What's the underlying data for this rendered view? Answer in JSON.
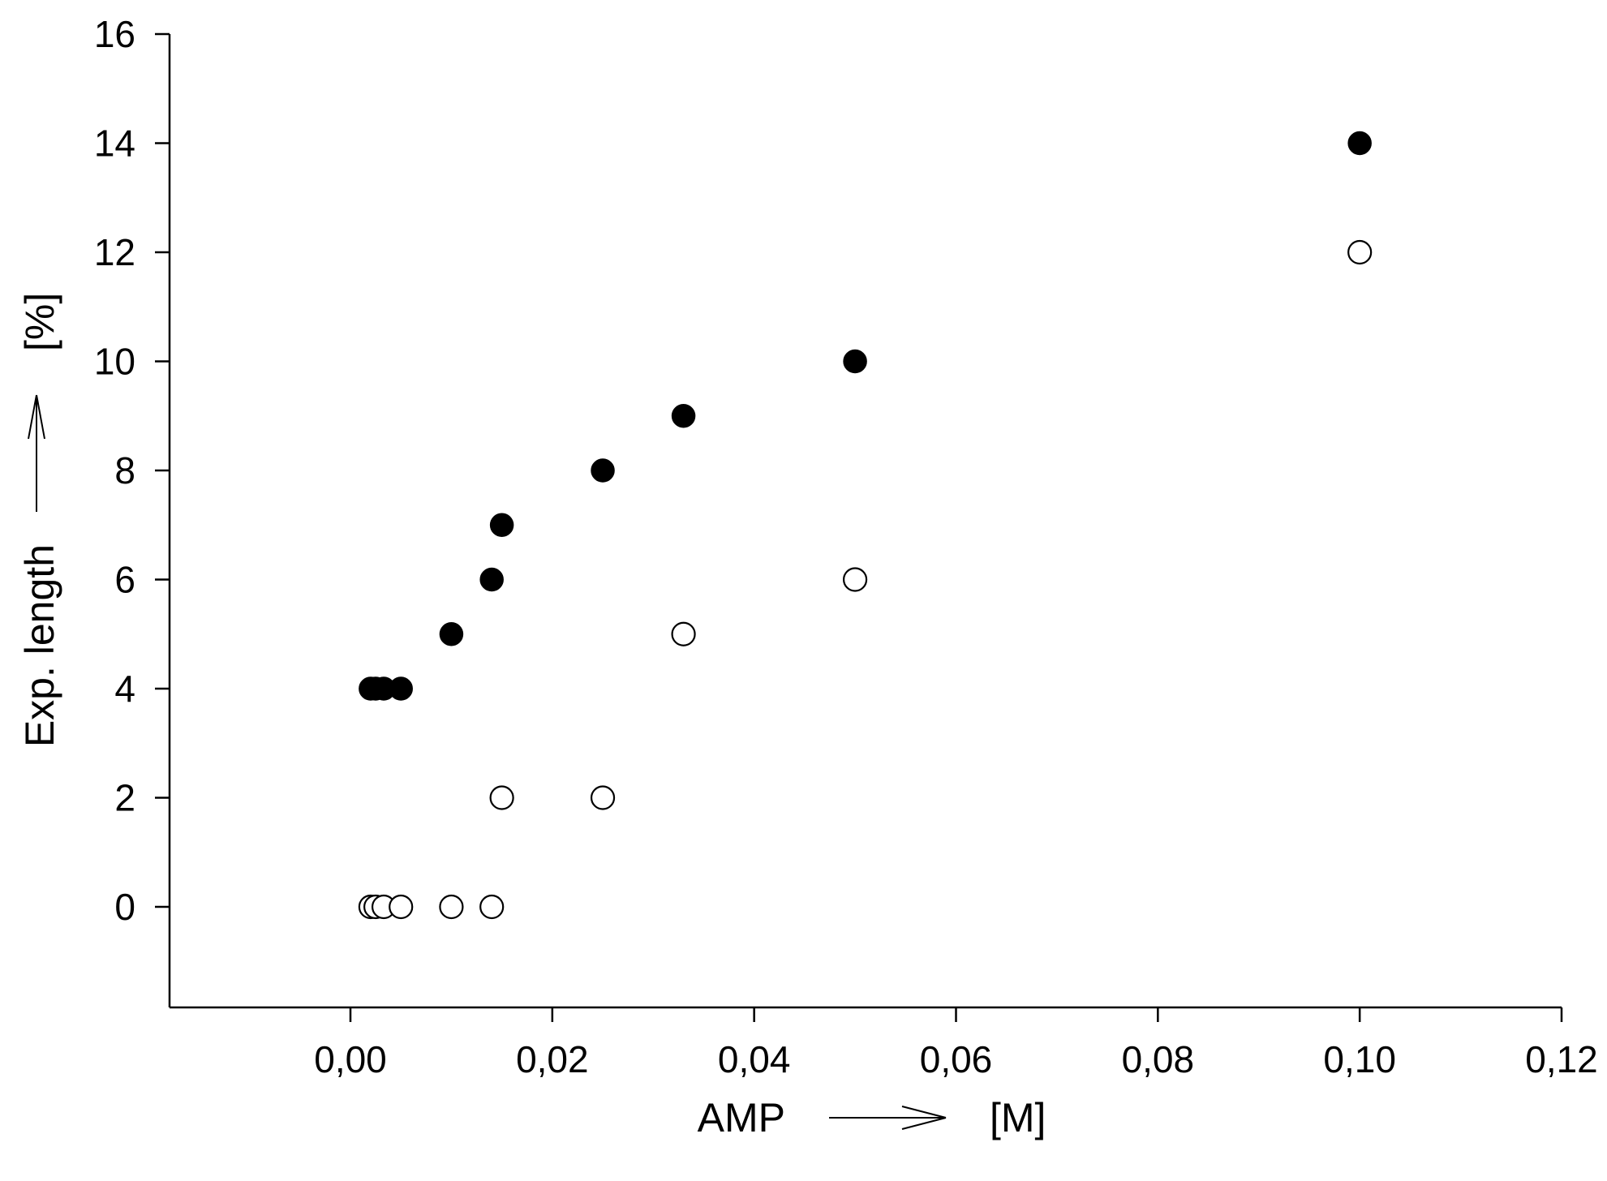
{
  "chart_data": {
    "type": "scatter",
    "title": "",
    "xlabel": "AMP",
    "xunit": "[M]",
    "ylabel": "Exp. length",
    "yunit": "[%]",
    "xlim": [
      -0.018,
      0.12
    ],
    "ylim": [
      -1.8,
      16
    ],
    "xticks": [
      0.0,
      0.02,
      0.04,
      0.06,
      0.08,
      0.1,
      0.12
    ],
    "xtick_labels": [
      "0,00",
      "0,02",
      "0,04",
      "0,06",
      "0,08",
      "0,10",
      "0,12"
    ],
    "yticks": [
      0,
      2,
      4,
      6,
      8,
      10,
      12,
      14,
      16
    ],
    "ytick_labels": [
      "0",
      "2",
      "4",
      "6",
      "8",
      "10",
      "12",
      "14",
      "16"
    ],
    "grid": false,
    "legend": "none",
    "series": [
      {
        "marker": "filled-circle",
        "color": "#000000",
        "points": [
          {
            "x": 0.002,
            "y": 4
          },
          {
            "x": 0.0025,
            "y": 4
          },
          {
            "x": 0.0033,
            "y": 4
          },
          {
            "x": 0.005,
            "y": 4
          },
          {
            "x": 0.01,
            "y": 5
          },
          {
            "x": 0.014,
            "y": 6
          },
          {
            "x": 0.015,
            "y": 7
          },
          {
            "x": 0.025,
            "y": 8
          },
          {
            "x": 0.033,
            "y": 9
          },
          {
            "x": 0.05,
            "y": 10
          },
          {
            "x": 0.1,
            "y": 14
          }
        ]
      },
      {
        "marker": "open-circle",
        "color": "#000000",
        "points": [
          {
            "x": 0.002,
            "y": 0
          },
          {
            "x": 0.0025,
            "y": 0
          },
          {
            "x": 0.0033,
            "y": 0
          },
          {
            "x": 0.005,
            "y": 0
          },
          {
            "x": 0.01,
            "y": 0
          },
          {
            "x": 0.014,
            "y": 0
          },
          {
            "x": 0.015,
            "y": 2
          },
          {
            "x": 0.025,
            "y": 2
          },
          {
            "x": 0.033,
            "y": 5
          },
          {
            "x": 0.05,
            "y": 6
          },
          {
            "x": 0.1,
            "y": 12
          }
        ]
      }
    ]
  }
}
